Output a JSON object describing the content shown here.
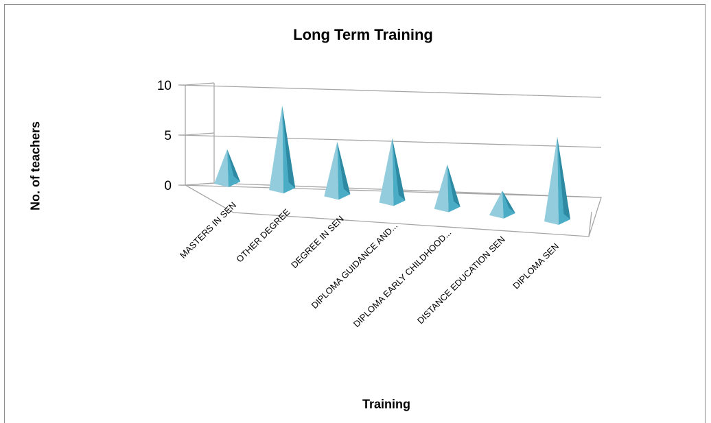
{
  "chart_data": {
    "type": "bar",
    "style": "3d-pyramid",
    "title": "Long Term Training",
    "xlabel": "Training",
    "ylabel": "No. of teachers",
    "categories": [
      "MASTERS IN SEN",
      "OTHER DEGREE",
      "DEGREE IN SEN",
      "DIPLOMA  GUIDANCE AND...",
      "DIPLOMA EARLY CHILDHOOD...",
      "DISTANCE EDUCATION SEN",
      "DIPLOMA SEN"
    ],
    "values": [
      2,
      7,
      4,
      5,
      3,
      1,
      7
    ],
    "ylim": [
      0,
      10
    ],
    "yticks": [
      0,
      5,
      10
    ],
    "grid": true,
    "legend": "none",
    "colors": {
      "bar": "#4bacc6",
      "bar_light": "#93cddd",
      "bar_dark": "#2e8aa3",
      "grid": "#a6a6a6"
    }
  }
}
